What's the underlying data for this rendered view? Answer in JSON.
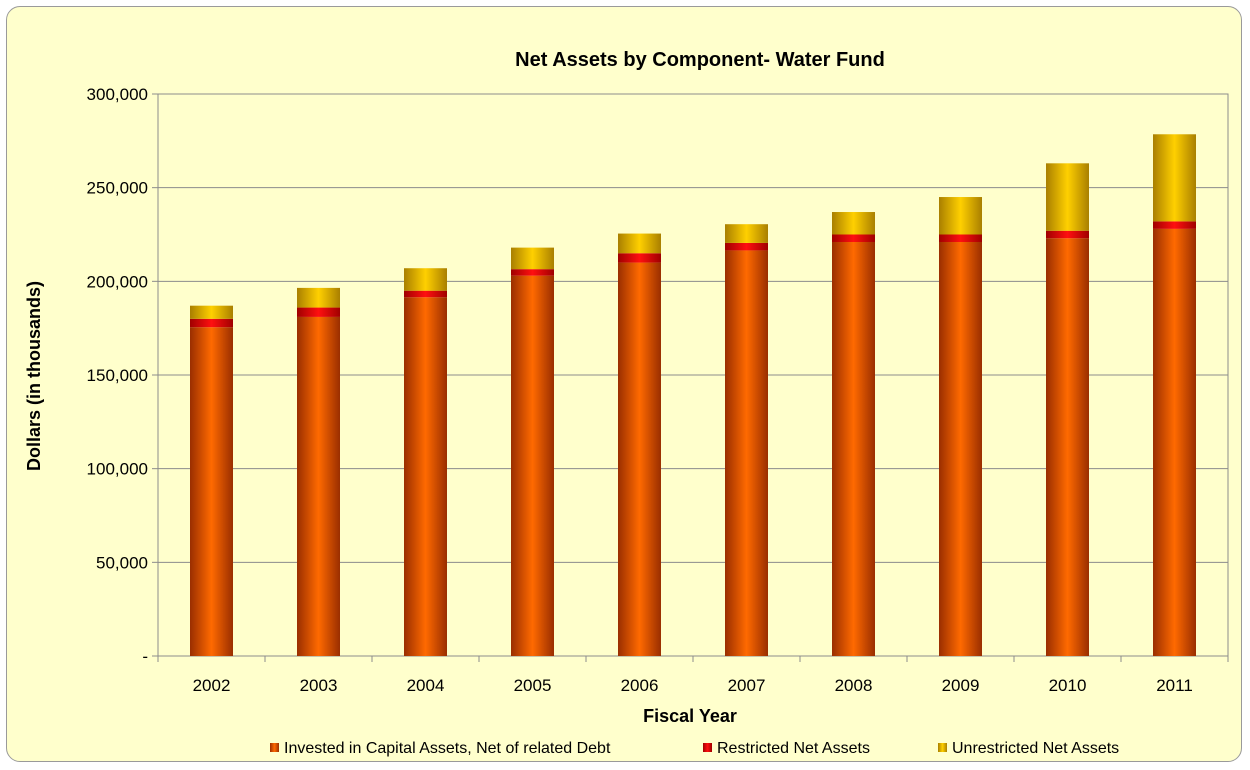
{
  "chart_data": {
    "type": "bar",
    "stacked": true,
    "title": "Net Assets  by Component- Water Fund",
    "xlabel": "Fiscal Year",
    "ylabel": "Dollars (in thousands)",
    "ylim": [
      0,
      300000
    ],
    "yticks": [
      0,
      50000,
      100000,
      150000,
      200000,
      250000,
      300000
    ],
    "ytick_labels": [
      "-",
      "50,000",
      "100,000",
      "150,000",
      "200,000",
      "250,000",
      "300,000"
    ],
    "grid": true,
    "legend_position": "bottom",
    "categories": [
      "2002",
      "2003",
      "2004",
      "2005",
      "2006",
      "2007",
      "2008",
      "2009",
      "2010",
      "2011"
    ],
    "series": [
      {
        "name": "Invested in Capital Assets, Net of related Debt",
        "color": "#ff6600",
        "values": [
          175500,
          181000,
          191500,
          203000,
          210000,
          216500,
          221000,
          221000,
          223000,
          228000
        ]
      },
      {
        "name": "Restricted Net Assets",
        "color": "#ee0000",
        "values": [
          4500,
          5000,
          3500,
          3500,
          5000,
          4000,
          4000,
          4000,
          4000,
          4000
        ]
      },
      {
        "name": "Unrestricted Net Assets",
        "color": "#f5c400",
        "values": [
          7000,
          10500,
          12000,
          11500,
          10500,
          10000,
          12000,
          20000,
          36000,
          46500
        ]
      }
    ]
  }
}
